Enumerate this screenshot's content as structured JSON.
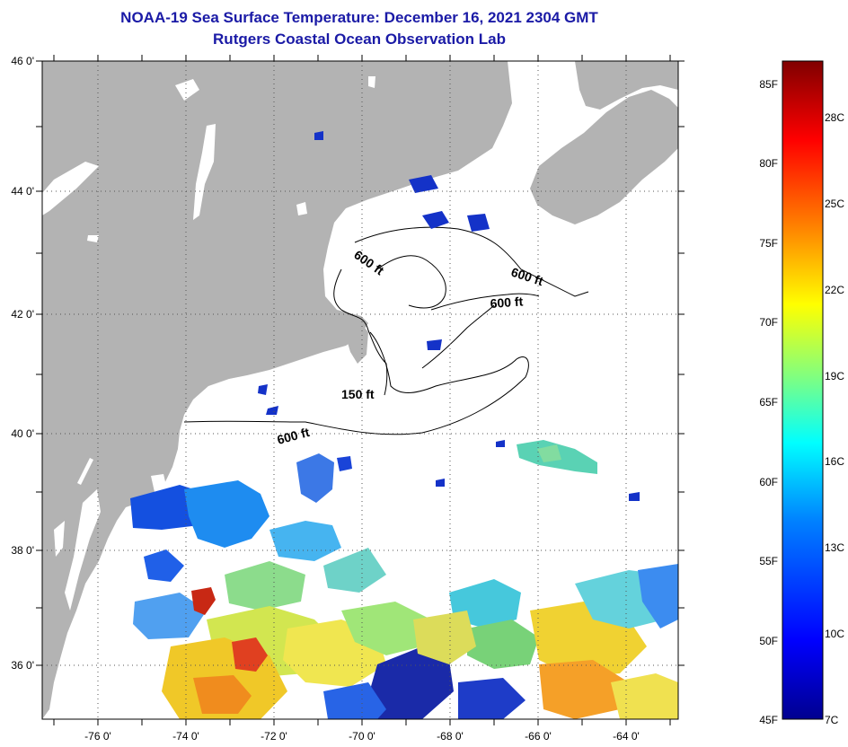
{
  "header": {
    "title": "NOAA-19 Sea Surface Temperature:  December 16, 2021 2304 GMT",
    "subtitle": "Rutgers Coastal Ocean Observation Lab"
  },
  "map": {
    "lon_labels": [
      "-76 0'",
      "-74 0'",
      "-72 0'",
      "-70 0'",
      "-68 0'",
      "-66 0'",
      "-64 0'"
    ],
    "lat_labels": [
      "46 0'",
      "44 0'",
      "42 0'",
      "40 0'",
      "38 0'",
      "36 0'"
    ],
    "lon_range": [
      -77,
      -63
    ],
    "lat_range": [
      35,
      46
    ],
    "land_color": "#b3b3b3",
    "contour_labels": [
      "600 ft",
      "600 ft",
      "600 ft",
      "150 ft",
      "600 ft"
    ]
  },
  "colorbar": {
    "fahrenheit_labels": [
      "85F",
      "80F",
      "75F",
      "70F",
      "65F",
      "60F",
      "55F",
      "50F",
      "45F"
    ],
    "celsius_labels": [
      "28C",
      "25C",
      "22C",
      "19C",
      "16C",
      "13C",
      "10C",
      "7C"
    ],
    "range_f": [
      45,
      86
    ],
    "stops": [
      "#00008f",
      "#0000ff",
      "#0080ff",
      "#00ffff",
      "#80ff80",
      "#ffff00",
      "#ff8000",
      "#ff0000",
      "#800000"
    ]
  }
}
